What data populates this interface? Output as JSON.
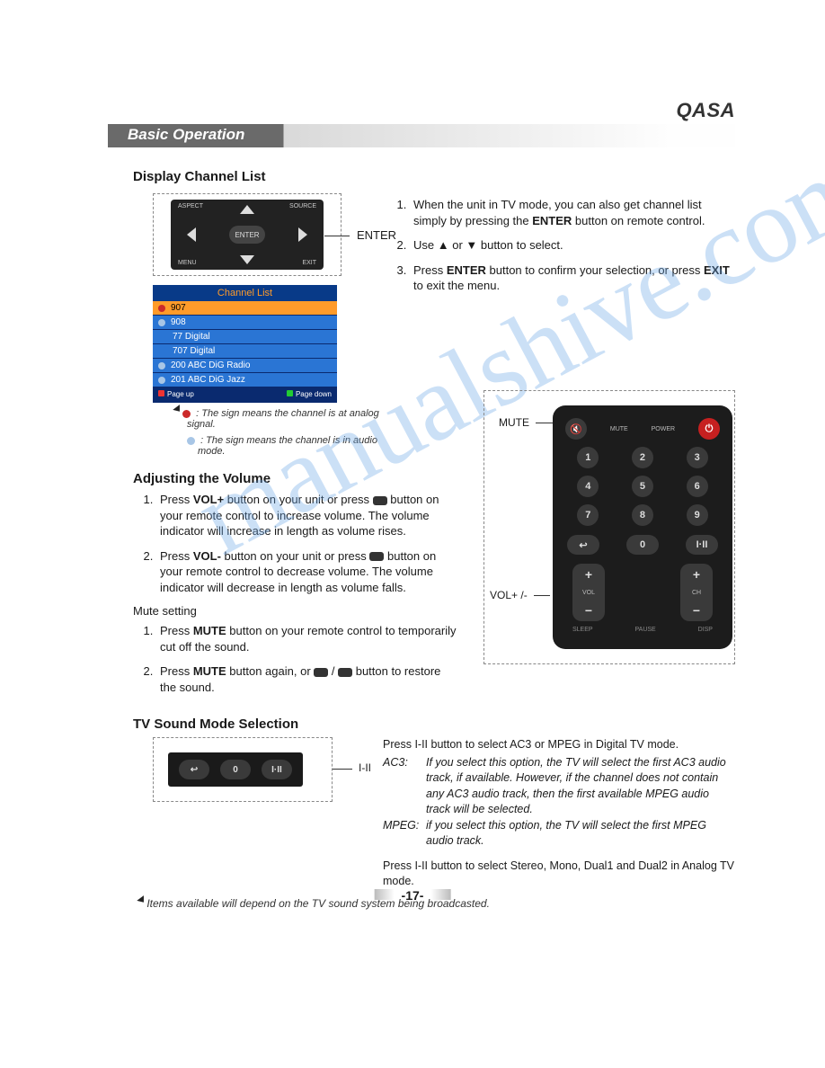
{
  "brand": "QASA",
  "section_header": "Basic Operation",
  "watermark_text": "manualshive.com",
  "page_number": "-17-",
  "display_channel_list": {
    "heading": "Display Channel List",
    "enter_label": "ENTER",
    "navpad": {
      "top_left": "ASPECT",
      "top_right": "SOURCE",
      "bottom_left": "MENU",
      "bottom_right": "EXIT",
      "center": "ENTER"
    },
    "osd": {
      "title": "Channel List",
      "rows": [
        {
          "icon": "analog",
          "label": "907",
          "selected": true
        },
        {
          "icon": "audio",
          "label": "908"
        },
        {
          "icon": "",
          "label": "77 Digital"
        },
        {
          "icon": "",
          "label": "707 Digital"
        },
        {
          "icon": "audio",
          "label": "200 ABC DiG Radio"
        },
        {
          "icon": "audio",
          "label": "201 ABC DiG Jazz"
        }
      ],
      "page_up": "Page up",
      "page_down": "Page down"
    },
    "legend": [
      {
        "icon_color": "#cc2a2a",
        "text": ": The sign means the channel is at analog signal."
      },
      {
        "icon_color": "#a8c6e6",
        "text": ": The sign means the channel is in audio mode."
      }
    ],
    "steps": [
      {
        "pre": "When the unit in TV mode, you can also get channel list simply by pressing the ",
        "bold": "ENTER",
        "post": " button on remote control."
      },
      {
        "pre": "Use ▲ or ▼ button to select."
      },
      {
        "pre": "Press ",
        "bold": "ENTER",
        "mid": " button to confirm your selection, or press ",
        "bold2": "EXIT",
        "post": " to exit the menu."
      }
    ]
  },
  "adjusting_volume": {
    "heading": "Adjusting the Volume",
    "steps": [
      {
        "pre": "Press ",
        "bold": "VOL+",
        "post": " button on your unit or press ␣ button on your remote control to increase volume. The volume indicator will increase in length as volume rises."
      },
      {
        "pre": "Press ",
        "bold": "VOL-",
        "post": " button on your unit or press ␣ button on your remote control to decrease volume. The volume indicator will decrease in length as volume falls."
      }
    ],
    "mute_heading": "Mute setting",
    "mute_steps": [
      {
        "pre": "Press ",
        "bold": "MUTE",
        "post": " button on your remote control to temporarily cut off the sound."
      },
      {
        "pre": "Press ",
        "bold": "MUTE",
        "post": " button again, or ␣ / ␣ button to restore the sound."
      }
    ],
    "callout_mute": "MUTE",
    "callout_vol": "VOL+ /-",
    "remote": {
      "top_mute": "MUTE",
      "top_power": "POWER",
      "numbers": [
        "1",
        "2",
        "3",
        "4",
        "5",
        "6",
        "7",
        "8",
        "9"
      ],
      "row3": [
        "↩",
        "0",
        "I·II"
      ],
      "vol_label": "VOL",
      "ch_label": "CH",
      "bottom_labels": [
        "SLEEP",
        "PAUSE",
        "DISP"
      ]
    }
  },
  "sound_mode": {
    "heading": "TV Sound Mode Selection",
    "iii_label": "I-II",
    "box_buttons": [
      "↩",
      "0",
      "I·II"
    ],
    "para1_pre": "Press ",
    "para1_btn": "I-II",
    "para1_post": " button to select AC3 or MPEG in Digital TV mode.",
    "ac3_label": "AC3:",
    "ac3_text": "If you select this option, the TV will select the first AC3 audio track, if available. However, if the channel does not contain any AC3 audio track, then the first available MPEG audio track will be selected.",
    "mpeg_label": "MPEG:",
    "mpeg_text": "if you select this option, the TV will select the first MPEG audio track.",
    "para2_pre": "Press ",
    "para2_btn": "I-II",
    "para2_post": " button to select Stereo, Mono, Dual1 and Dual2 in Analog TV mode.",
    "footnote": "Items available will depend on the TV sound system being broadcasted."
  }
}
